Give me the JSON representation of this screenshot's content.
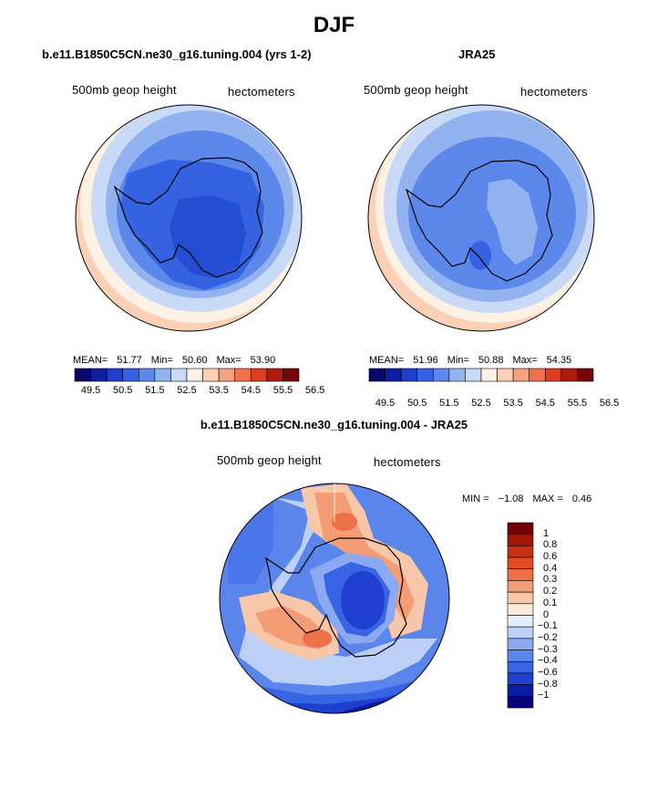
{
  "title": "DJF",
  "colors": {
    "abs_scale": [
      "#08076b",
      "#0d1fa0",
      "#1d3fcb",
      "#3462e0",
      "#5b88ea",
      "#93b3f0",
      "#c9daf7",
      "#fdf1e3",
      "#fbd0b6",
      "#f7a27f",
      "#f0704b",
      "#dd3e1f",
      "#ae1a0c",
      "#740606"
    ],
    "diff_scale": [
      "#05037a",
      "#0b1da2",
      "#1f40cf",
      "#3763e5",
      "#5a86ec",
      "#8ba9f1",
      "#bcd0f6",
      "#e3edfb",
      "#fde9d9",
      "#f8c6a8",
      "#f49c76",
      "#ee7049",
      "#e24a24",
      "#c92e0f",
      "#9e1905",
      "#700303"
    ]
  },
  "chart_data": [
    {
      "type": "polar-contour",
      "title": "b.e11.B1850C5CN.ne30_g16.tuning.004 (yrs 1-2)",
      "field_label": "500mb geop height",
      "units": "hectometers",
      "stats": {
        "mean_label": "MEAN=",
        "mean": "51.77",
        "min_label": "Min=",
        "min": "50.60",
        "max_label": "Max=",
        "max": "53.90"
      },
      "levels": [
        "49.5",
        "50.5",
        "51.5",
        "52.5",
        "53.5",
        "54.5",
        "55.5",
        "56.5"
      ]
    },
    {
      "type": "polar-contour",
      "title": "JRA25",
      "field_label": "500mb geop height",
      "units": "hectometers",
      "stats": {
        "mean_label": "MEAN=",
        "mean": "51.96",
        "min_label": "Min=",
        "min": "50.88",
        "max_label": "Max=",
        "max": "54.35"
      },
      "levels": [
        "49.5",
        "50.5",
        "51.5",
        "52.5",
        "53.5",
        "54.5",
        "55.5",
        "56.5"
      ]
    },
    {
      "type": "polar-contour-difference",
      "title": "b.e11.B1850C5CN.ne30_g16.tuning.004 - JRA25",
      "field_label": "500mb geop height",
      "units": "hectometers",
      "stats": {
        "min_label": "MIN =",
        "min": "−1.08",
        "max_label": "MAX =",
        "max": "0.46"
      },
      "levels": [
        "1",
        "0.8",
        "0.6",
        "0.4",
        "0.3",
        "0.2",
        "0.1",
        "0",
        "−0.1",
        "−0.2",
        "−0.3",
        "−0.4",
        "−0.6",
        "−0.8",
        "−1"
      ]
    }
  ]
}
